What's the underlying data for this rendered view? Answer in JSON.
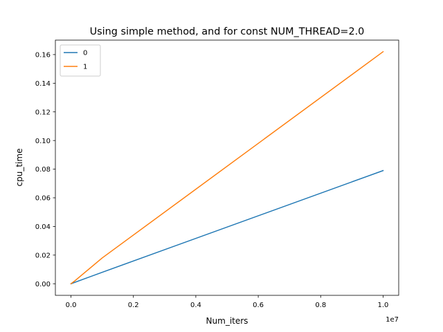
{
  "chart_data": {
    "type": "line",
    "title": "Using simple method, and for const NUM_THREAD=2.0",
    "xlabel": "Num_iters",
    "ylabel": "cpu_time",
    "x_offset_label": "1e7",
    "xlim": [
      -0.05,
      1.05
    ],
    "ylim": [
      -0.0081,
      0.1701
    ],
    "xticks": [
      0.0,
      0.2,
      0.4,
      0.6,
      0.8,
      1.0
    ],
    "xtick_labels": [
      "0.0",
      "0.2",
      "0.4",
      "0.6",
      "0.8",
      "1.0"
    ],
    "yticks": [
      0.0,
      0.02,
      0.04,
      0.06,
      0.08,
      0.1,
      0.12,
      0.14,
      0.16
    ],
    "ytick_labels": [
      "0.00",
      "0.02",
      "0.04",
      "0.06",
      "0.08",
      "0.10",
      "0.12",
      "0.14",
      "0.16"
    ],
    "grid": false,
    "legend_position": "top-left",
    "series": [
      {
        "name": "0",
        "color": "#1f77b4",
        "x": [
          0.0,
          0.1,
          1.0
        ],
        "y": [
          0.0,
          0.008,
          0.079
        ]
      },
      {
        "name": "1",
        "color": "#ff7f0e",
        "x": [
          0.0,
          0.01,
          0.1,
          1.0
        ],
        "y": [
          0.0,
          0.0016,
          0.018,
          0.162
        ]
      }
    ]
  }
}
